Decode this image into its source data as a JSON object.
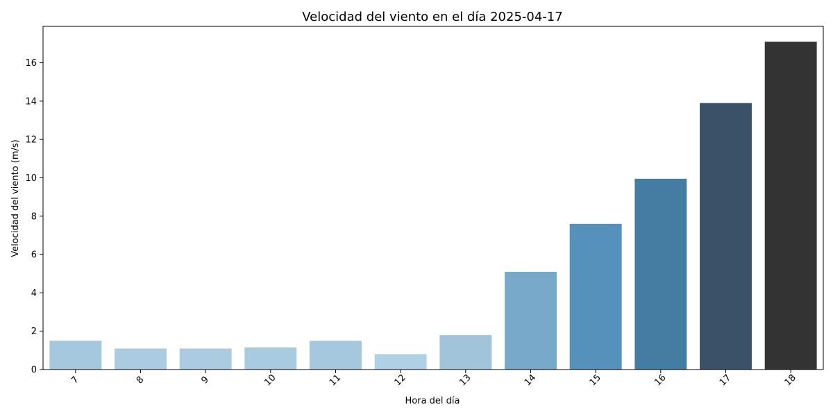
{
  "chart_data": {
    "type": "bar",
    "title": "Velocidad del viento en el día 2025-04-17",
    "xlabel": "Hora del día",
    "ylabel": "Velocidad del viento (m/s)",
    "categories": [
      "7",
      "8",
      "9",
      "10",
      "11",
      "12",
      "13",
      "14",
      "15",
      "16",
      "17",
      "18"
    ],
    "values": [
      1.5,
      1.1,
      1.1,
      1.15,
      1.5,
      0.8,
      1.8,
      5.1,
      7.6,
      9.95,
      13.9,
      17.1
    ],
    "colors": [
      "#a5c8de",
      "#aacbe0",
      "#aacbe0",
      "#a9cbe0",
      "#a5c8de",
      "#b0d0e6",
      "#a2c4da",
      "#78a9cb",
      "#5591ba",
      "#457ca1",
      "#3a5167",
      "#333333"
    ],
    "yticks": [
      0,
      2,
      4,
      6,
      8,
      10,
      12,
      14,
      16
    ],
    "ylim": [
      0,
      17.9
    ],
    "grid": false,
    "legend": "none"
  }
}
